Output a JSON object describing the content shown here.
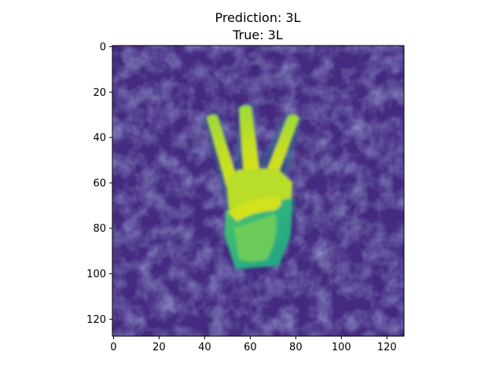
{
  "chart_data": {
    "type": "heatmap",
    "title": "Prediction: 3L",
    "subtitle": "True: 3L",
    "xlabel": "",
    "ylabel": "",
    "xlim": [
      -0.5,
      127.5
    ],
    "ylim": [
      127.5,
      -0.5
    ],
    "x_ticks": [
      0,
      20,
      40,
      60,
      80,
      100,
      120
    ],
    "y_ticks": [
      0,
      20,
      40,
      60,
      80,
      100,
      120
    ],
    "colormap": "viridis",
    "grid": false,
    "content": "grayscale hand gesture image rendered with viridis colormap",
    "colors": {
      "background_low": "#44257f",
      "background_mid": "#3b3f8a",
      "hand_mid": "#3ab37a",
      "hand_high": "#d8e219"
    }
  }
}
